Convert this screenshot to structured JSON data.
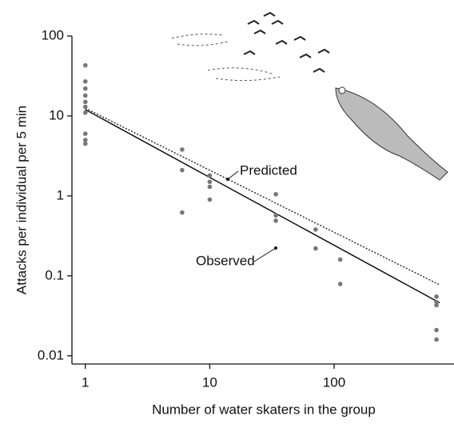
{
  "chart_data": {
    "type": "scatter",
    "x_label": "Number of water skaters in the group",
    "y_label": "Attacks per individual per 5 min",
    "log_x": true,
    "log_y": true,
    "xlim": [
      0.78,
      920
    ],
    "ylim": [
      0.0079,
      100
    ],
    "xticks": [
      1,
      10,
      100
    ],
    "yticks": [
      0.01,
      0.1,
      1,
      10,
      100
    ],
    "points": {
      "color": "#777777",
      "x": [
        1,
        1,
        1,
        1,
        1,
        1,
        1,
        1,
        1,
        1,
        6,
        6,
        6,
        10,
        10,
        10,
        10,
        34,
        34,
        34,
        71,
        71,
        112,
        112,
        665,
        665,
        665,
        665,
        665
      ],
      "y": [
        43,
        27,
        22,
        18,
        15,
        13,
        11,
        6,
        5,
        4.5,
        3.8,
        2.1,
        0.62,
        1.8,
        1.5,
        1.3,
        0.9,
        1.05,
        0.57,
        0.49,
        0.38,
        0.22,
        0.16,
        0.079,
        0.055,
        0.047,
        0.043,
        0.021,
        0.016
      ]
    },
    "lines": [
      {
        "label": "Observed",
        "style": "solid",
        "color": "#111111",
        "x": [
          1,
          707
        ],
        "y": [
          12,
          0.046
        ]
      },
      {
        "label": "Predicted",
        "style": "dotted",
        "color": "#222222",
        "x": [
          1,
          707
        ],
        "y": [
          12.5,
          0.077
        ]
      }
    ]
  }
}
